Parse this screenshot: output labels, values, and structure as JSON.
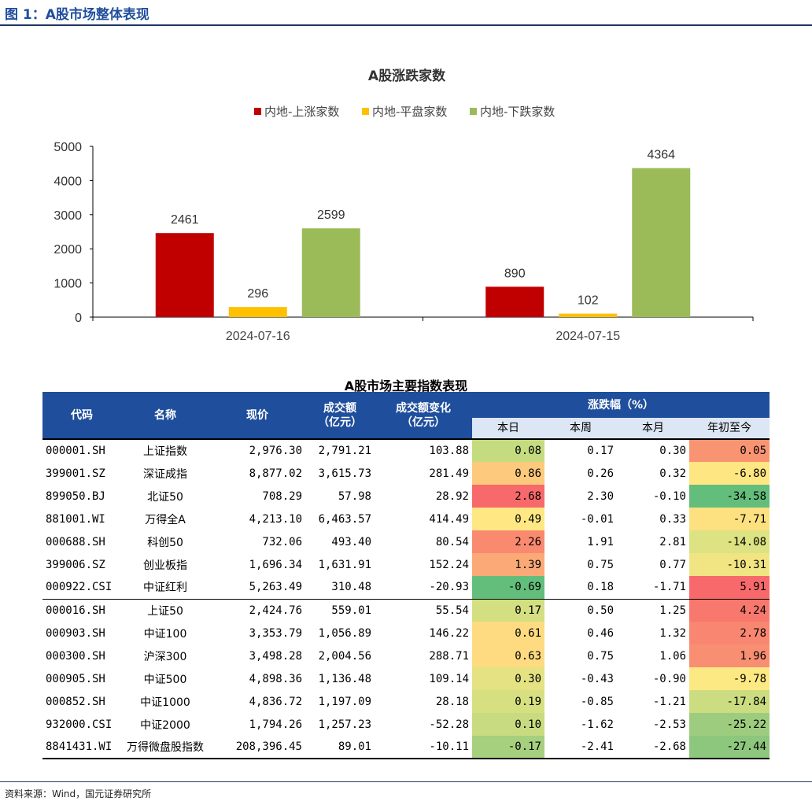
{
  "figure": {
    "title": "图 1：A股市场整体表现",
    "source": "资料来源：Wind，国元证券研究所"
  },
  "chart_data": {
    "type": "bar",
    "title": "A股涨跌家数",
    "categories": [
      "2024-07-16",
      "2024-07-15"
    ],
    "series": [
      {
        "name": "内地-上涨家数",
        "values": [
          2461,
          890
        ],
        "color": "#c00000"
      },
      {
        "name": "内地-平盘家数",
        "values": [
          296,
          102
        ],
        "color": "#ffc000"
      },
      {
        "name": "内地-下跌家数",
        "values": [
          2599,
          4364
        ],
        "color": "#9bbb59"
      }
    ],
    "ylim": [
      0,
      5000
    ],
    "yticks": [
      0,
      1000,
      2000,
      3000,
      4000,
      5000
    ],
    "legend": "top",
    "grid": false
  },
  "table": {
    "title": "A股市场主要指数表现",
    "headers": {
      "code": "代码",
      "name": "名称",
      "price": "现价",
      "turnover": "成交额\n（亿元）",
      "turnover_change": "成交额变化\n（亿元）",
      "pct_group": "涨跌幅（%）",
      "pct_day": "本日",
      "pct_week": "本周",
      "pct_month": "本月",
      "pct_ytd": "年初至今"
    },
    "rows": [
      {
        "code": "000001.SH",
        "name": "上证指数",
        "price": "2,976.30",
        "turnover": "2,791.21",
        "change": "103.88",
        "day": "0.08",
        "week": "0.17",
        "month": "0.30",
        "ytd": "0.05",
        "day_color": "#c5db7f",
        "ytd_color": "#f99473"
      },
      {
        "code": "399001.SZ",
        "name": "深证成指",
        "price": "8,877.02",
        "turnover": "3,615.73",
        "change": "281.49",
        "day": "0.86",
        "week": "0.26",
        "month": "0.32",
        "ytd": "-6.80",
        "day_color": "#fdc97c",
        "ytd_color": "#fee682"
      },
      {
        "code": "899050.BJ",
        "name": "北证50",
        "price": "708.29",
        "turnover": "57.98",
        "change": "28.92",
        "day": "2.68",
        "week": "2.30",
        "month": "-0.10",
        "ytd": "-34.58",
        "day_color": "#f8696b",
        "ytd_color": "#63be7b"
      },
      {
        "code": "881001.WI",
        "name": "万得全A",
        "price": "4,213.10",
        "turnover": "6,463.57",
        "change": "414.49",
        "day": "0.49",
        "week": "-0.01",
        "month": "0.33",
        "ytd": "-7.71",
        "day_color": "#ffe883",
        "ytd_color": "#fde07f"
      },
      {
        "code": "000688.SH",
        "name": "科创50",
        "price": "732.06",
        "turnover": "493.40",
        "change": "80.54",
        "day": "2.26",
        "week": "1.91",
        "month": "2.81",
        "ytd": "-14.08",
        "day_color": "#f98a70",
        "ytd_color": "#dde282"
      },
      {
        "code": "399006.SZ",
        "name": "创业板指",
        "price": "1,696.34",
        "turnover": "1,631.91",
        "change": "152.24",
        "day": "1.39",
        "week": "0.75",
        "month": "0.77",
        "ytd": "-10.31",
        "day_color": "#fbaa77",
        "ytd_color": "#f1e583"
      },
      {
        "code": "000922.CSI",
        "name": "中证红利",
        "price": "5,263.49",
        "turnover": "310.48",
        "change": "-20.93",
        "day": "-0.69",
        "week": "0.18",
        "month": "-1.71",
        "ytd": "5.91",
        "day_color": "#63be7b",
        "ytd_color": "#f8696b"
      },
      {
        "code": "000016.SH",
        "name": "上证50",
        "price": "2,424.76",
        "turnover": "559.01",
        "change": "55.54",
        "day": "0.17",
        "week": "0.50",
        "month": "1.25",
        "ytd": "4.24",
        "day_color": "#d3df81",
        "ytd_color": "#f8786d"
      },
      {
        "code": "000903.SH",
        "name": "中证100",
        "price": "3,353.79",
        "turnover": "1,056.89",
        "change": "146.22",
        "day": "0.61",
        "week": "0.46",
        "month": "1.32",
        "ytd": "2.78",
        "day_color": "#fedb81",
        "ytd_color": "#f98670"
      },
      {
        "code": "000300.SH",
        "name": "沪深300",
        "price": "3,498.28",
        "turnover": "2,004.56",
        "change": "288.71",
        "day": "0.63",
        "week": "0.75",
        "month": "1.06",
        "ytd": "1.96",
        "day_color": "#feda80",
        "ytd_color": "#f98f72"
      },
      {
        "code": "000905.SH",
        "name": "中证500",
        "price": "4,898.36",
        "turnover": "1,136.48",
        "change": "109.14",
        "day": "0.30",
        "week": "-0.43",
        "month": "-0.90",
        "ytd": "-9.78",
        "day_color": "#e4e282",
        "ytd_color": "#fde983"
      },
      {
        "code": "000852.SH",
        "name": "中证1000",
        "price": "4,836.72",
        "turnover": "1,197.09",
        "change": "28.18",
        "day": "0.19",
        "week": "-0.85",
        "month": "-1.21",
        "ytd": "-17.84",
        "day_color": "#d6e081",
        "ytd_color": "#cbdc81"
      },
      {
        "code": "932000.CSI",
        "name": "中证2000",
        "price": "1,794.26",
        "turnover": "1,257.23",
        "change": "-52.28",
        "day": "0.10",
        "week": "-1.62",
        "month": "-2.53",
        "ytd": "-25.22",
        "day_color": "#c8db80",
        "ytd_color": "#9dcc7e"
      },
      {
        "code": "8841431.WI",
        "name": "万得微盘股指数",
        "price": "208,396.45",
        "turnover": "89.01",
        "change": "-10.11",
        "day": "-0.17",
        "week": "-2.41",
        "month": "-2.68",
        "ytd": "-27.44",
        "day_color": "#a6cf7e",
        "ytd_color": "#8dc67d"
      }
    ]
  }
}
